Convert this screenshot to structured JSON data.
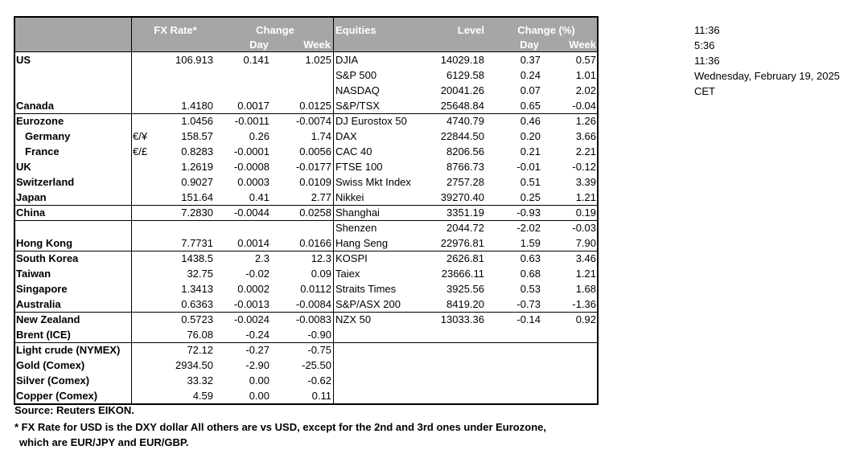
{
  "headers": {
    "fx_rate": "FX Rate*",
    "change": "Change",
    "day": "Day",
    "week": "Week",
    "equities": "Equities",
    "level": "Level",
    "change_pct": "Change (%)",
    "eq_day": "Day",
    "eq_week": "Week"
  },
  "rows": [
    {
      "name": "US",
      "bold": true,
      "fx": "106.913",
      "fx_day": "0.141",
      "fx_week": "1.025",
      "equity": "DJIA",
      "level": "14029.18",
      "eq_day": "0.37",
      "eq_week": "0.57"
    },
    {
      "name": "",
      "equity": "S&P 500",
      "level": "6129.58",
      "eq_day": "0.24",
      "eq_week": "1.01"
    },
    {
      "name": "",
      "equity": "NASDAQ",
      "level": "20041.26",
      "eq_day": "0.07",
      "eq_week": "2.02"
    },
    {
      "name": "Canada",
      "bold": true,
      "fx": "1.4180",
      "fx_day": "0.0017",
      "fx_week": "0.0125",
      "equity": "S&P/TSX",
      "level": "25648.84",
      "eq_day": "0.65",
      "eq_week": "-0.04"
    },
    {
      "name": "Eurozone",
      "bold": true,
      "fx": "1.0456",
      "fx_day": "-0.0011",
      "fx_week": "-0.0074",
      "equity": "DJ Eurostox 50",
      "level": "4740.79",
      "eq_day": "0.46",
      "eq_week": "1.26"
    },
    {
      "name": "Germany",
      "bold": true,
      "indent": true,
      "pair": "€/¥",
      "fx": "158.57",
      "fx_day": "0.26",
      "fx_week": "1.74",
      "equity": "DAX",
      "level": "22844.50",
      "eq_day": "0.20",
      "eq_week": "3.66"
    },
    {
      "name": "France",
      "bold": true,
      "indent": true,
      "pair": "€/£",
      "fx": "0.8283",
      "fx_day": "-0.0001",
      "fx_week": "0.0056",
      "equity": "CAC 40",
      "level": "8206.56",
      "eq_day": "0.21",
      "eq_week": "2.21"
    },
    {
      "name": "UK",
      "bold": true,
      "fx": "1.2619",
      "fx_day": "-0.0008",
      "fx_week": "-0.0177",
      "equity": "FTSE 100",
      "level": "8766.73",
      "eq_day": "-0.01",
      "eq_week": "-0.12"
    },
    {
      "name": "Switzerland",
      "bold": true,
      "fx": "0.9027",
      "fx_day": "0.0003",
      "fx_week": "0.0109",
      "equity": "Swiss Mkt Index",
      "level": "2757.28",
      "eq_day": "0.51",
      "eq_week": "3.39"
    },
    {
      "name": "Japan",
      "bold": true,
      "fx": "151.64",
      "fx_day": "0.41",
      "fx_week": "2.77",
      "equity": "Nikkei",
      "level": "39270.40",
      "eq_day": "0.25",
      "eq_week": "1.21"
    },
    {
      "name": "China",
      "bold": true,
      "fx": "7.2830",
      "fx_day": "-0.0044",
      "fx_week": "0.0258",
      "equity": "Shanghai",
      "level": "3351.19",
      "eq_day": "-0.93",
      "eq_week": "0.19"
    },
    {
      "name": "",
      "equity": "Shenzen",
      "level": "2044.72",
      "eq_day": "-2.02",
      "eq_week": "-0.03"
    },
    {
      "name": "Hong Kong",
      "bold": true,
      "fx": "7.7731",
      "fx_day": "0.0014",
      "fx_week": "0.0166",
      "equity": "Hang Seng",
      "level": "22976.81",
      "eq_day": "1.59",
      "eq_week": "7.90"
    },
    {
      "name": "South Korea",
      "bold": true,
      "fx": "1438.5",
      "fx_day": "2.3",
      "fx_week": "12.3",
      "equity": "KOSPI",
      "level": "2626.81",
      "eq_day": "0.63",
      "eq_week": "3.46"
    },
    {
      "name": "Taiwan",
      "bold": true,
      "fx": "32.75",
      "fx_day": "-0.02",
      "fx_week": "0.09",
      "equity": "Taiex",
      "level": "23666.11",
      "eq_day": "0.68",
      "eq_week": "1.21"
    },
    {
      "name": "Singapore",
      "bold": true,
      "fx": "1.3413",
      "fx_day": "0.0002",
      "fx_week": "0.0112",
      "equity": "Straits Times",
      "level": "3925.56",
      "eq_day": "0.53",
      "eq_week": "1.68"
    },
    {
      "name": "Australia",
      "bold": true,
      "fx": "0.6363",
      "fx_day": "-0.0013",
      "fx_week": "-0.0084",
      "equity": "S&P/ASX  200",
      "level": "8419.20",
      "eq_day": "-0.73",
      "eq_week": "-1.36"
    },
    {
      "name": "New Zealand",
      "bold": true,
      "fx": "0.5723",
      "fx_day": "-0.0024",
      "fx_week": "-0.0083",
      "equity": "NZX 50",
      "level": "13033.36",
      "eq_day": "-0.14",
      "eq_week": "0.92"
    },
    {
      "name": "Brent (ICE)",
      "bold": true,
      "fx": "76.08",
      "fx_day": "-0.24",
      "fx_week": "-0.90"
    },
    {
      "name": "Light crude (NYMEX)",
      "bold": true,
      "fx": "72.12",
      "fx_day": "-0.27",
      "fx_week": "-0.75"
    },
    {
      "name": "Gold (Comex)",
      "bold": true,
      "fx": "2934.50",
      "fx_day": "-2.90",
      "fx_week": "-25.50"
    },
    {
      "name": "Silver (Comex)",
      "bold": true,
      "fx": "33.32",
      "fx_day": "0.00",
      "fx_week": "-0.62"
    },
    {
      "name": "Copper (Comex)",
      "bold": true,
      "fx": "4.59",
      "fx_day": "0.00",
      "fx_week": "0.11"
    }
  ],
  "footnotes": {
    "source": "Source:  Reuters EIKON.",
    "note1": "* FX Rate for USD is the DXY dollar  All others are vs USD, except for the 2nd and 3rd ones under Eurozone,",
    "note2": "which are EUR/JPY and EUR/GBP."
  },
  "side": {
    "time1": "11:36",
    "time2": "5:36",
    "time3": "11:36",
    "date": "Wednesday, February 19, 2025",
    "tz": "CET"
  },
  "colors": {
    "header_bg": "#a6a6a6",
    "border": "#000000"
  }
}
